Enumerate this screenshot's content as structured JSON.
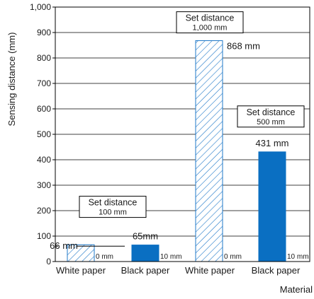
{
  "chart_data": {
    "type": "bar",
    "ylabel": "Sensing distance (mm)",
    "xlabel": "Material",
    "ylim": [
      0,
      1000
    ],
    "yticks": [
      0,
      100,
      200,
      300,
      400,
      500,
      600,
      700,
      800,
      900,
      1000
    ],
    "ytick_labels": [
      "0",
      "100",
      "200",
      "300",
      "400",
      "500",
      "600",
      "700",
      "800",
      "900",
      "1,000"
    ],
    "grid": true,
    "categories": [
      "White paper",
      "Black paper",
      "White paper",
      "Black paper"
    ],
    "bars": [
      {
        "category": "White paper",
        "value": 66,
        "style": "hatched",
        "value_label": "66 mm",
        "zero_label": "0 mm"
      },
      {
        "category": "Black paper",
        "value": 65,
        "style": "solid",
        "value_label": "65mm",
        "zero_label": "10 mm"
      },
      {
        "category": "White paper",
        "value": 868,
        "style": "hatched",
        "value_label": "868 mm",
        "zero_label": "0 mm"
      },
      {
        "category": "Black paper",
        "value": 431,
        "style": "solid",
        "value_label": "431 mm",
        "zero_label": "10 mm"
      }
    ],
    "annotations": [
      {
        "line1": "Set distance",
        "line2": "100 mm"
      },
      {
        "line1": "Set distance",
        "line2": "1,000 mm"
      },
      {
        "line1": "Set distance",
        "line2": "500 mm"
      }
    ],
    "colors": {
      "solid": "#0a6fc2",
      "hatch": "#1f78c8"
    }
  }
}
